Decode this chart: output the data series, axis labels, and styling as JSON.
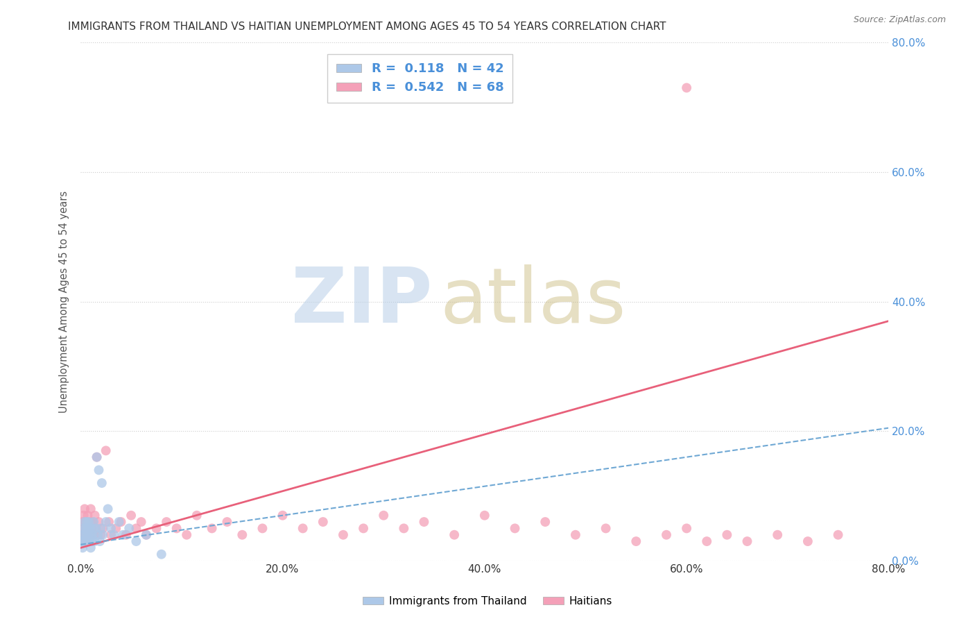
{
  "title": "IMMIGRANTS FROM THAILAND VS HAITIAN UNEMPLOYMENT AMONG AGES 45 TO 54 YEARS CORRELATION CHART",
  "source": "Source: ZipAtlas.com",
  "ylabel": "Unemployment Among Ages 45 to 54 years",
  "xlim": [
    0.0,
    0.8
  ],
  "ylim": [
    0.0,
    0.8
  ],
  "xtick_vals": [
    0.0,
    0.2,
    0.4,
    0.6,
    0.8
  ],
  "ytick_vals": [
    0.0,
    0.2,
    0.4,
    0.6,
    0.8
  ],
  "thailand_R": 0.118,
  "thailand_N": 42,
  "haitian_R": 0.542,
  "haitian_N": 68,
  "thailand_color": "#adc8e8",
  "haitian_color": "#f4a0b8",
  "thailand_line_color": "#6fa8d4",
  "haitian_line_color": "#e8607a",
  "background_color": "#ffffff",
  "grid_color": "#cccccc",
  "title_color": "#333333",
  "label_color": "#555555",
  "right_tick_color": "#4a90d9",
  "thailand_scatter_x": [
    0.001,
    0.002,
    0.002,
    0.003,
    0.003,
    0.004,
    0.004,
    0.005,
    0.005,
    0.006,
    0.006,
    0.007,
    0.007,
    0.008,
    0.008,
    0.009,
    0.009,
    0.01,
    0.01,
    0.011,
    0.011,
    0.012,
    0.013,
    0.014,
    0.015,
    0.016,
    0.017,
    0.018,
    0.019,
    0.02,
    0.021,
    0.022,
    0.025,
    0.027,
    0.03,
    0.033,
    0.038,
    0.042,
    0.048,
    0.055,
    0.065,
    0.08
  ],
  "thailand_scatter_y": [
    0.03,
    0.02,
    0.04,
    0.05,
    0.03,
    0.06,
    0.04,
    0.03,
    0.05,
    0.04,
    0.06,
    0.03,
    0.05,
    0.04,
    0.06,
    0.03,
    0.05,
    0.04,
    0.02,
    0.05,
    0.03,
    0.04,
    0.06,
    0.03,
    0.05,
    0.16,
    0.04,
    0.14,
    0.03,
    0.05,
    0.12,
    0.04,
    0.06,
    0.08,
    0.05,
    0.04,
    0.06,
    0.04,
    0.05,
    0.03,
    0.04,
    0.01
  ],
  "haitian_scatter_x": [
    0.001,
    0.002,
    0.002,
    0.003,
    0.003,
    0.004,
    0.004,
    0.005,
    0.005,
    0.006,
    0.006,
    0.007,
    0.008,
    0.009,
    0.01,
    0.01,
    0.011,
    0.012,
    0.013,
    0.014,
    0.015,
    0.016,
    0.018,
    0.02,
    0.022,
    0.025,
    0.028,
    0.03,
    0.035,
    0.04,
    0.045,
    0.05,
    0.055,
    0.06,
    0.065,
    0.075,
    0.085,
    0.095,
    0.105,
    0.115,
    0.13,
    0.145,
    0.16,
    0.18,
    0.2,
    0.22,
    0.24,
    0.26,
    0.28,
    0.3,
    0.32,
    0.34,
    0.37,
    0.4,
    0.43,
    0.46,
    0.49,
    0.52,
    0.55,
    0.58,
    0.6,
    0.62,
    0.64,
    0.66,
    0.69,
    0.72,
    0.75,
    0.6
  ],
  "haitian_scatter_y": [
    0.04,
    0.03,
    0.06,
    0.05,
    0.07,
    0.04,
    0.08,
    0.03,
    0.06,
    0.05,
    0.04,
    0.07,
    0.05,
    0.06,
    0.04,
    0.08,
    0.05,
    0.06,
    0.04,
    0.07,
    0.05,
    0.16,
    0.06,
    0.04,
    0.05,
    0.17,
    0.06,
    0.04,
    0.05,
    0.06,
    0.04,
    0.07,
    0.05,
    0.06,
    0.04,
    0.05,
    0.06,
    0.05,
    0.04,
    0.07,
    0.05,
    0.06,
    0.04,
    0.05,
    0.07,
    0.05,
    0.06,
    0.04,
    0.05,
    0.07,
    0.05,
    0.06,
    0.04,
    0.07,
    0.05,
    0.06,
    0.04,
    0.05,
    0.03,
    0.04,
    0.05,
    0.03,
    0.04,
    0.03,
    0.04,
    0.03,
    0.04,
    0.73
  ],
  "thailand_line_x": [
    0.0,
    0.8
  ],
  "thailand_line_y": [
    0.025,
    0.205
  ],
  "haitian_line_x": [
    0.0,
    0.8
  ],
  "haitian_line_y": [
    0.02,
    0.37
  ]
}
